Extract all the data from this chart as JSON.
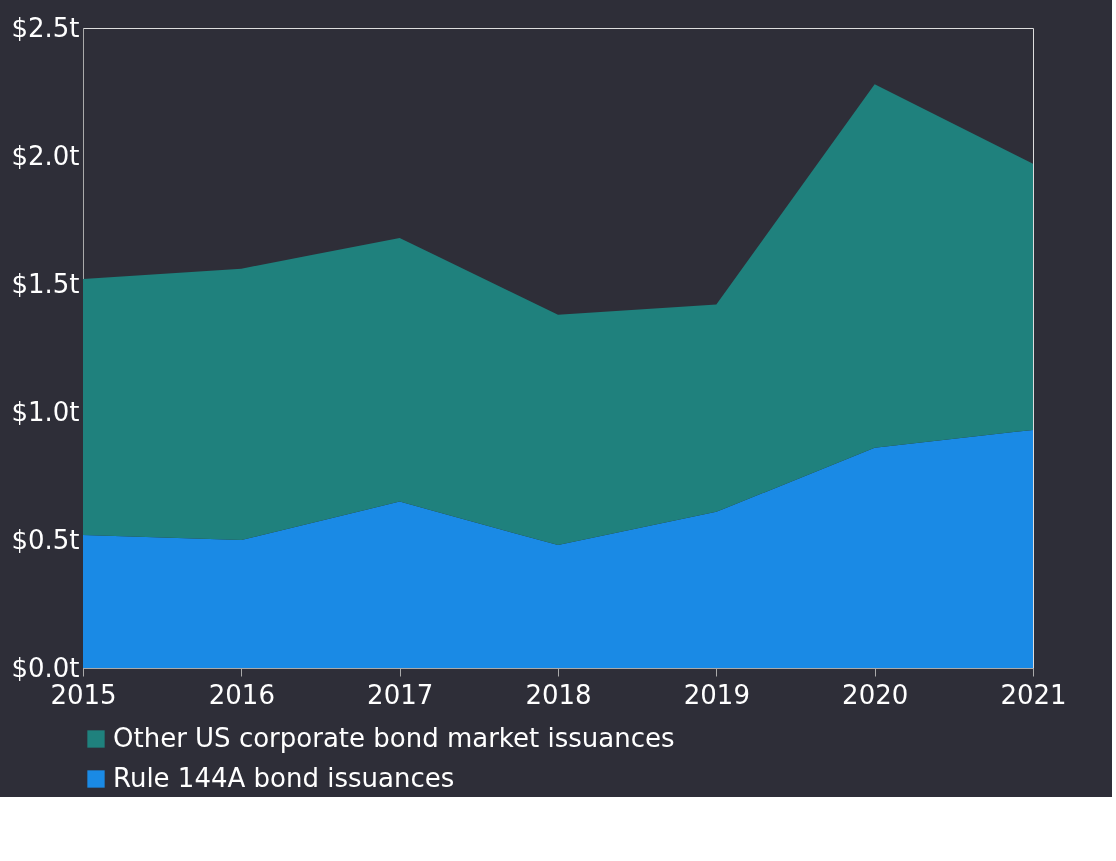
{
  "chart_data": {
    "type": "area",
    "stacked": true,
    "x": [
      2015,
      2016,
      2017,
      2018,
      2019,
      2020,
      2021
    ],
    "series": [
      {
        "name": "Rule 144A bond issuances",
        "color": "#1a8ae5",
        "values": [
          0.52,
          0.5,
          0.65,
          0.48,
          0.61,
          0.86,
          0.93
        ]
      },
      {
        "name": "Other US corporate bond market issuances",
        "color": "#1f817d",
        "values": [
          1.0,
          1.06,
          1.03,
          0.9,
          0.81,
          1.42,
          1.04
        ]
      }
    ],
    "xlim": [
      2015,
      2021
    ],
    "xticks": [
      2015,
      2016,
      2017,
      2018,
      2019,
      2020,
      2021
    ],
    "ylim": [
      0,
      2.5
    ],
    "yticks": [
      {
        "value": 0,
        "label": "$0.0t"
      },
      {
        "value": 0.5,
        "label": "$0.5t"
      },
      {
        "value": 1.0,
        "label": "$1.0t"
      },
      {
        "value": 1.5,
        "label": "$1.5t"
      },
      {
        "value": 2.0,
        "label": "$2.0t"
      },
      {
        "value": 2.5,
        "label": "$2.5t"
      }
    ],
    "grid": false,
    "legend": "bottom"
  }
}
